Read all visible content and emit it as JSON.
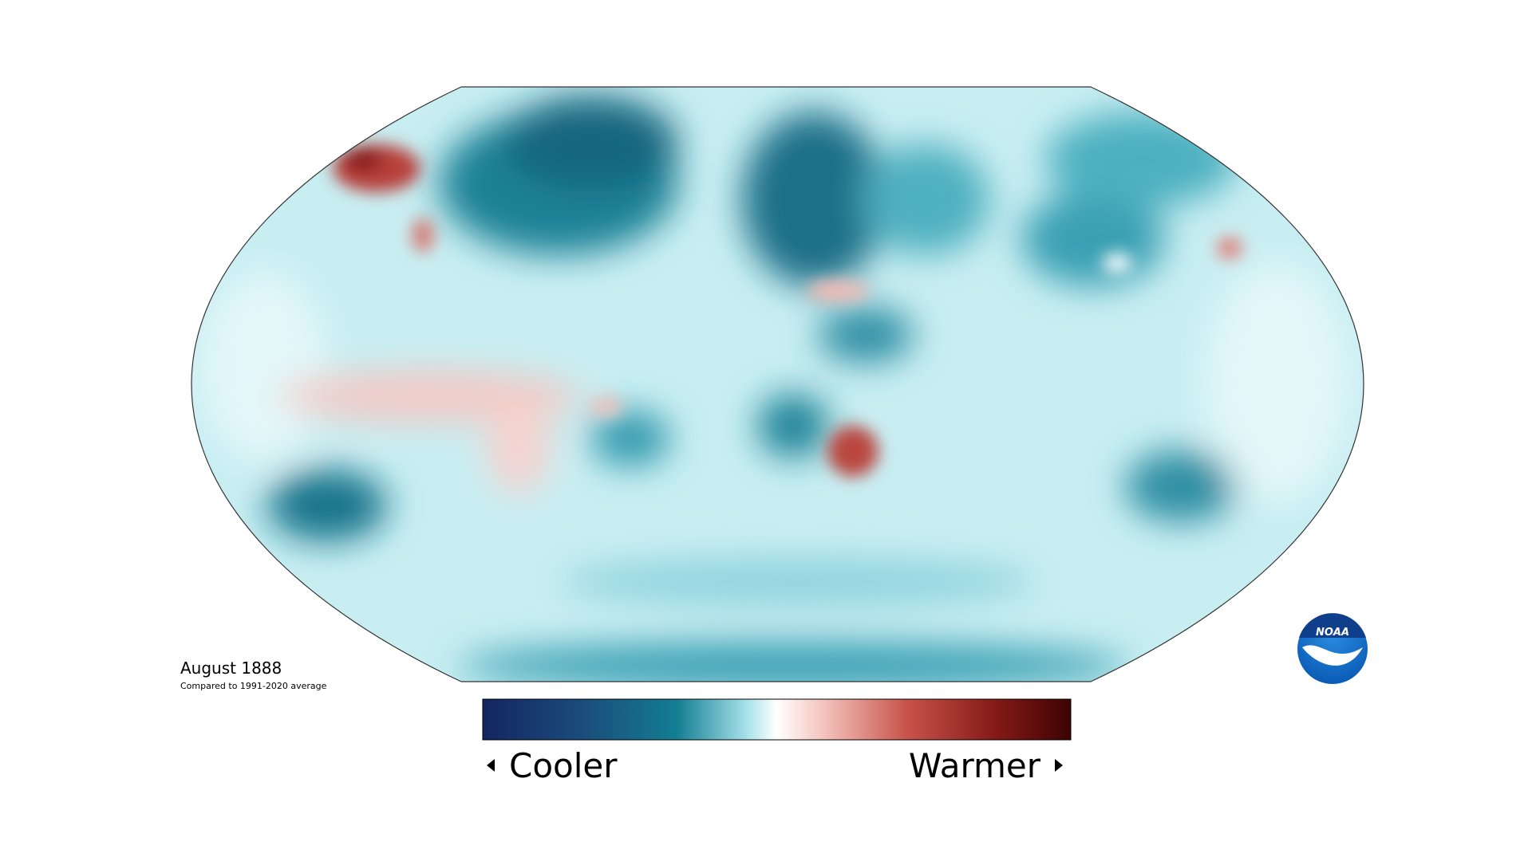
{
  "title": "August 1888",
  "subtitle": "Compared to 1991-2020 average",
  "legend": {
    "low": "Cooler",
    "high": "Warmer"
  },
  "logo": "NOAA"
}
